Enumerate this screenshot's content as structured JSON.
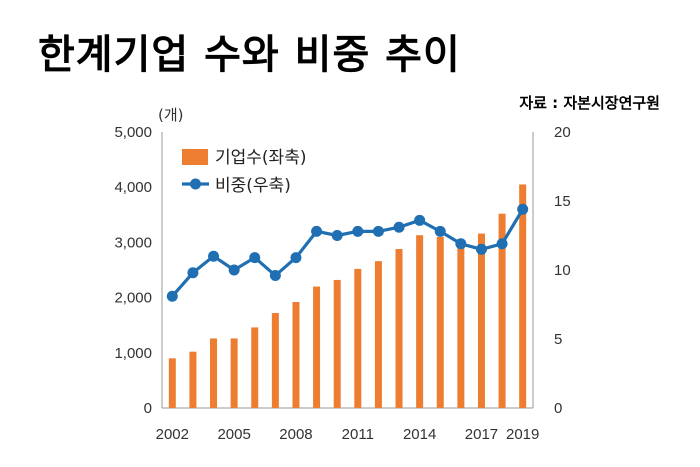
{
  "header": {
    "title": "한계기업 수와 비중 추이",
    "source": "자료 : 자본시장연구원"
  },
  "colors": {
    "bar": "#ed7d31",
    "line": "#1f6fb2"
  },
  "chart_data": {
    "type": "bar",
    "categories": [
      "2002",
      "2003",
      "2004",
      "2005",
      "2006",
      "2007",
      "2008",
      "2009",
      "2010",
      "2011",
      "2012",
      "2013",
      "2014",
      "2015",
      "2016",
      "2017",
      "2018",
      "2019"
    ],
    "x_tick_labels": [
      "2002",
      "2005",
      "2008",
      "2011",
      "2014",
      "2017",
      "2019"
    ],
    "y_unit_label": "(개)",
    "ylim_left": [
      0,
      5000
    ],
    "yticks_left": [
      "0",
      "1,000",
      "2,000",
      "3,000",
      "4,000",
      "5,000"
    ],
    "ylim_right": [
      0,
      20
    ],
    "yticks_right": [
      "0",
      "5",
      "10",
      "15",
      "20"
    ],
    "grid": false,
    "legend_position": "top-left",
    "series": [
      {
        "name": "기업수(좌축)",
        "type": "bar",
        "axis": "left",
        "values": [
          900,
          1020,
          1260,
          1260,
          1460,
          1720,
          1920,
          2200,
          2320,
          2520,
          2660,
          2880,
          3130,
          3100,
          2960,
          3160,
          3520,
          4050
        ]
      },
      {
        "name": "비중(우축)",
        "type": "line",
        "axis": "right",
        "values": [
          8.1,
          9.8,
          11.0,
          10.0,
          10.9,
          9.6,
          10.9,
          12.8,
          12.5,
          12.8,
          12.8,
          13.1,
          13.6,
          12.8,
          11.9,
          11.5,
          11.9,
          14.4
        ]
      }
    ]
  }
}
